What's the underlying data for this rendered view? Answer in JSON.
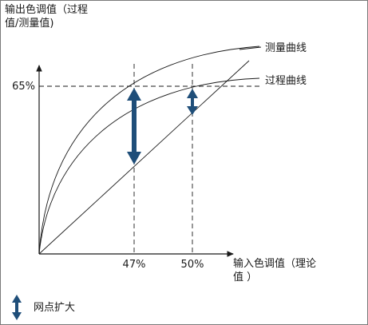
{
  "diagram": {
    "y_axis_label_line1": "输出色调值（过程",
    "y_axis_label_line2": "值/测量值)",
    "x_axis_label_line1": "输入色调值（理论",
    "x_axis_label_line2": "值 ）",
    "y_marker": "65%",
    "x_markers": [
      "47%",
      "50%"
    ],
    "curves": [
      {
        "label": "测量曲线"
      },
      {
        "label": "过程曲线"
      }
    ],
    "legend_label": "网点扩大",
    "arrow_color": "#1f4e79",
    "line_color": "#1a1a1a"
  }
}
